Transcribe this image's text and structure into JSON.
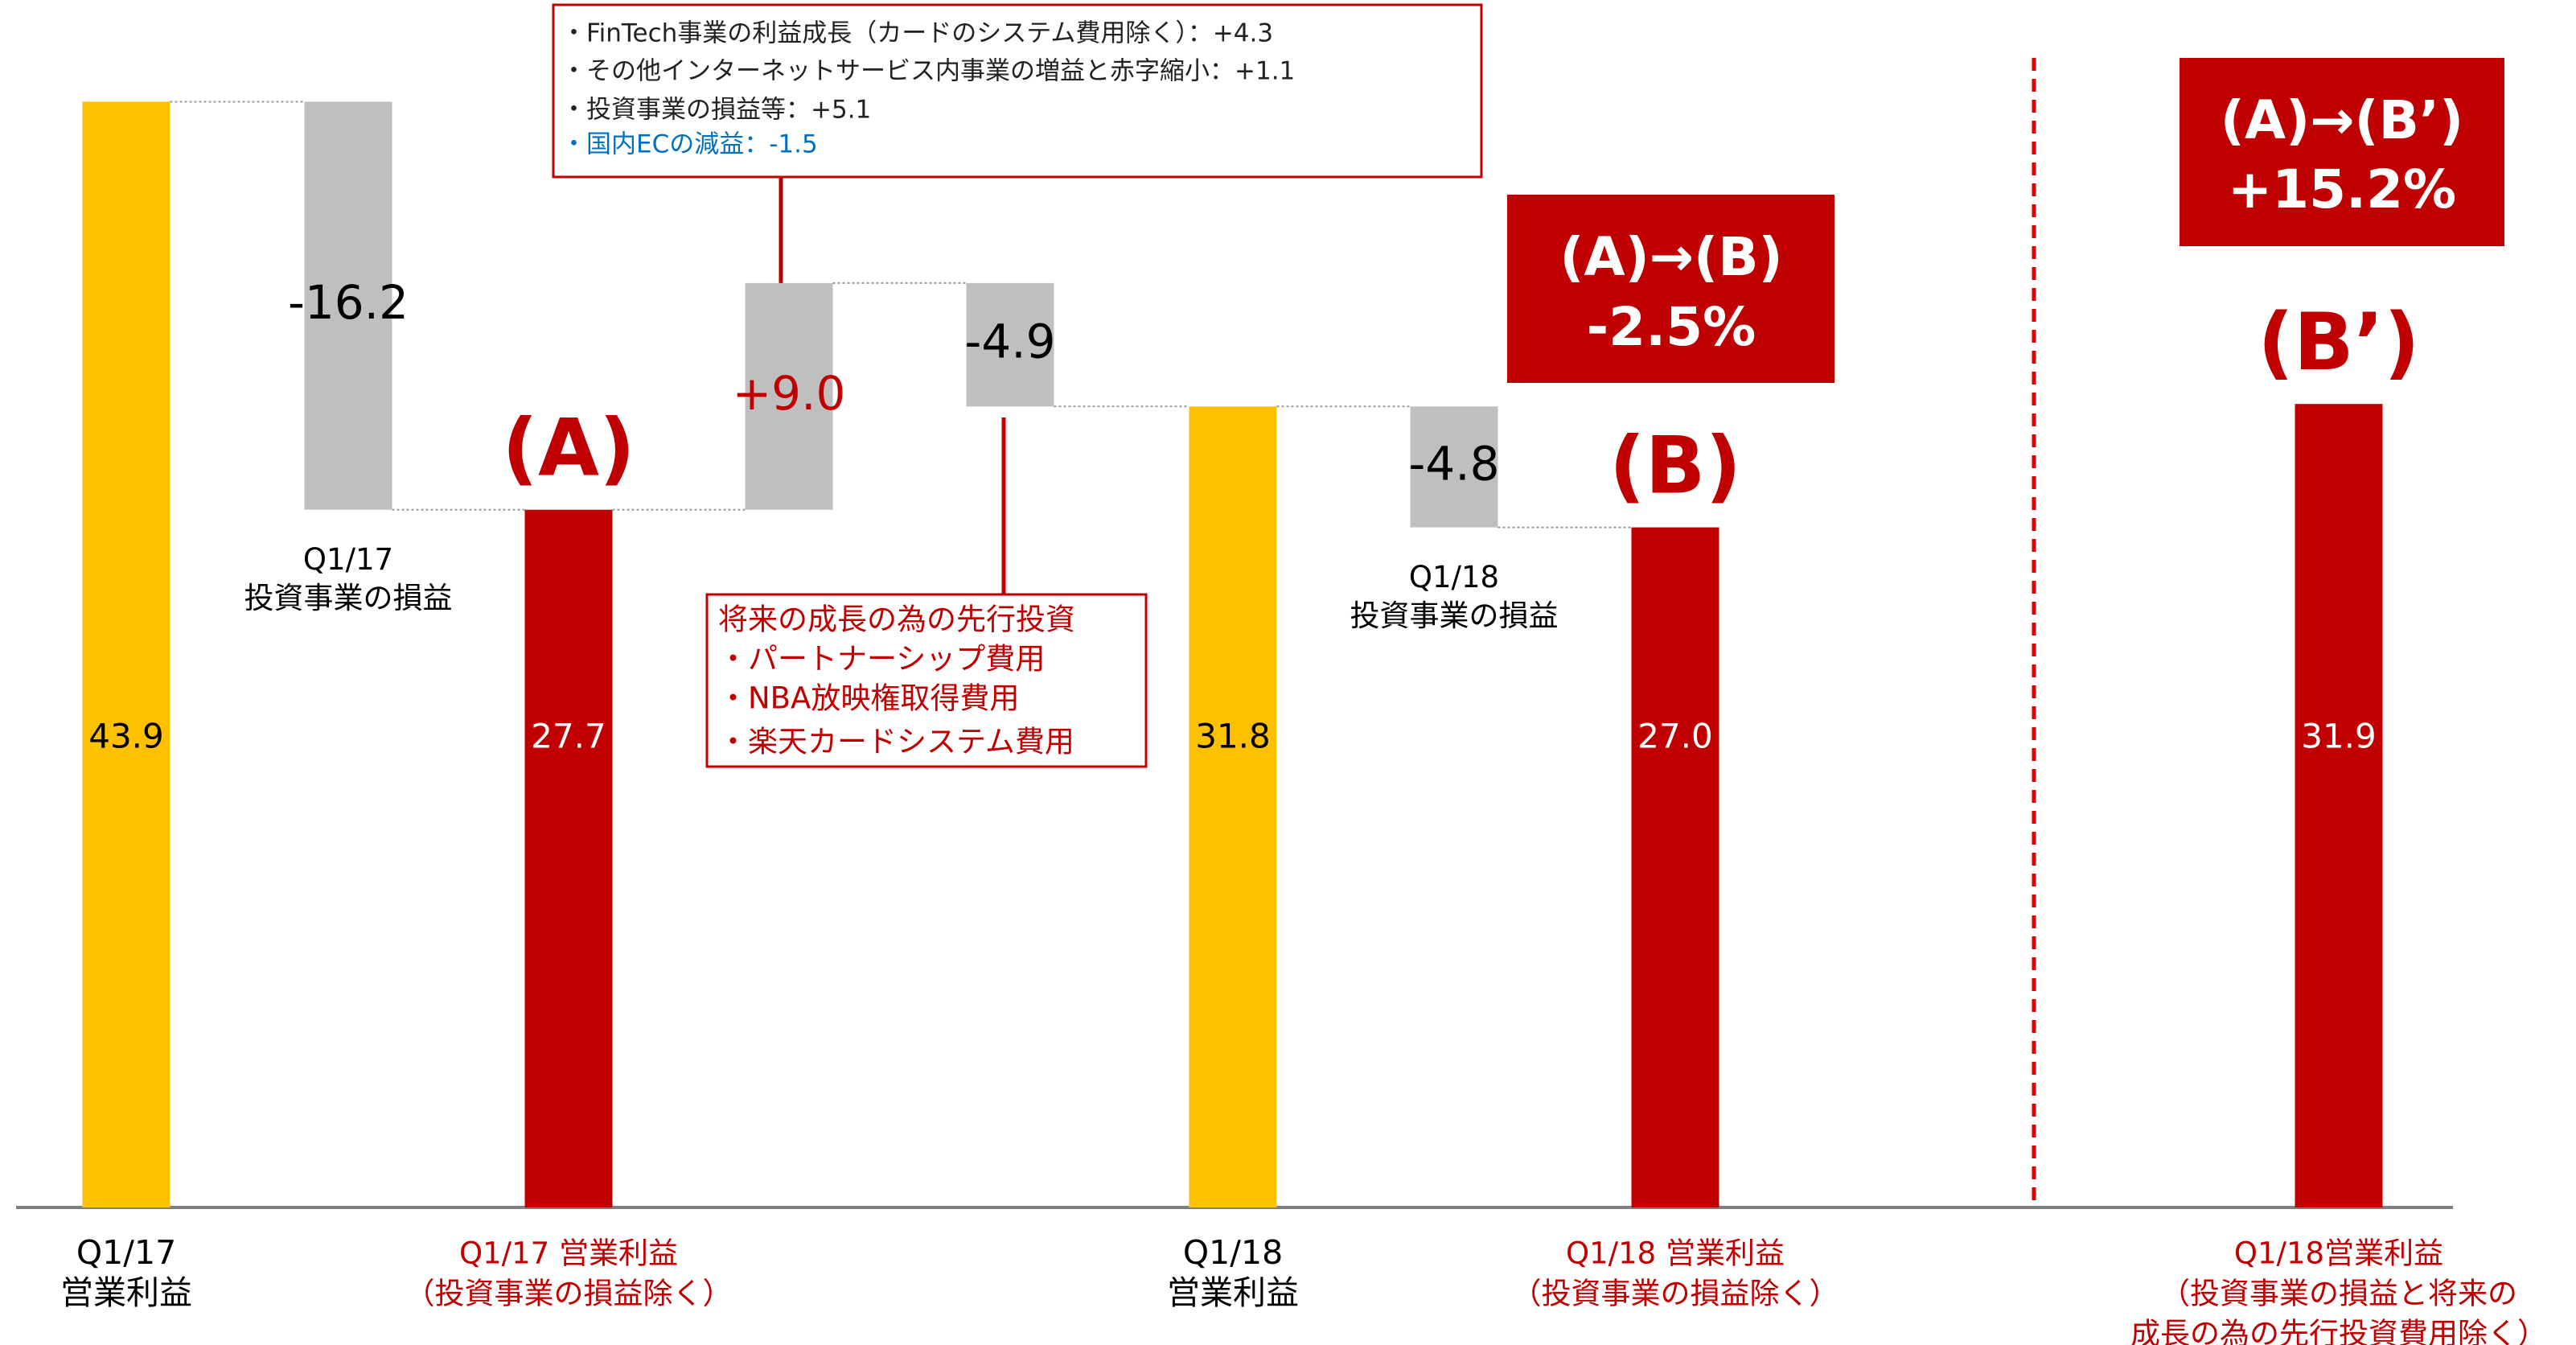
{
  "chart_data": {
    "type": "waterfall",
    "categories": [
      [
        "Q1/17",
        "営業利益"
      ],
      null,
      [
        "Q1/17 営業利益",
        "（投資事業の損益除く）"
      ],
      null,
      null,
      [
        "Q1/18",
        "営業利益"
      ],
      null,
      [
        "Q1/18 営業利益",
        "（投資事業の損益除く）"
      ],
      [
        "Q1/18営業利益",
        "（投資事業の損益と将来の",
        "成長の為の先行投資費用除く）"
      ]
    ],
    "values": [
      43.9,
      -16.2,
      27.7,
      9.0,
      -4.9,
      31.8,
      -4.8,
      27.0,
      31.9
    ],
    "value_labels": [
      "43.9",
      "-16.2",
      "27.7",
      "+9.0",
      "-4.9",
      "31.8",
      "-4.8",
      "27.0",
      "31.9"
    ],
    "kinds": [
      "total",
      "delta",
      "total",
      "delta",
      "delta",
      "total",
      "delta",
      "total",
      "total"
    ],
    "colors": [
      "#FFC000",
      "#BFBFBF",
      "#C00000",
      "#BFBFBF",
      "#BFBFBF",
      "#FFC000",
      "#BFBFBF",
      "#C00000",
      "#C00000"
    ],
    "bar_notes": [
      null,
      [
        "Q1/17",
        "投資事業の損益"
      ],
      null,
      null,
      null,
      null,
      [
        "Q1/18",
        "投資事業の損益"
      ],
      null,
      null
    ],
    "markers": [
      null,
      null,
      "(A)",
      null,
      null,
      null,
      null,
      "(B)",
      "(B’)"
    ],
    "ylim": [
      0,
      45
    ],
    "comparisons": [
      [
        "(A)→(B)",
        "-2.5%"
      ],
      [
        "(A)→(B’)",
        "+15.2%"
      ]
    ],
    "callouts": [
      [
        "・FinTech事業の利益成長（カードのシステム費用除く）：+4.3",
        "・その他インターネットサービス内事業の増益と赤字縮小：+1.1",
        "・投資事業の損益等：+5.1",
        "・国内ECの減益：-1.5"
      ],
      [
        "将来の成長の為の先行投資",
        "・パートナーシップ費用",
        "・NBA放映権取得費用",
        "・楽天カードシステム費用"
      ]
    ]
  }
}
